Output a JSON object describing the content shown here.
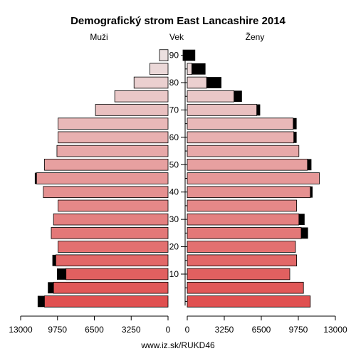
{
  "chart_data": {
    "type": "bar",
    "orientation": "horizontal-population-pyramid",
    "title": "Demografický strom East Lancashire 2014",
    "left_label": "Muži",
    "center_label": "Vek",
    "right_label": "Ženy",
    "footer": "www.iz.sk/RUKD46",
    "x_max": 13000,
    "x_ticks_left": [
      "13000",
      "9750",
      "6500",
      "3250",
      "0"
    ],
    "x_ticks_right": [
      "0",
      "3250",
      "6500",
      "9750",
      "13000"
    ],
    "age_ticks": [
      "10",
      "20",
      "30",
      "40",
      "50",
      "60",
      "70",
      "80",
      "90"
    ],
    "age_groups": [
      "0-4",
      "5-9",
      "10-14",
      "15-19",
      "20-24",
      "25-29",
      "30-34",
      "35-39",
      "40-44",
      "45-49",
      "50-54",
      "55-59",
      "60-64",
      "65-69",
      "70-74",
      "75-79",
      "80-84",
      "85-89",
      "90+"
    ],
    "male_values": [
      10900,
      10100,
      9000,
      9900,
      9700,
      10300,
      10100,
      9700,
      11000,
      11600,
      10900,
      9800,
      9700,
      9700,
      6400,
      4700,
      3000,
      1600,
      750
    ],
    "male_excess": [
      600,
      500,
      800,
      300,
      0,
      0,
      0,
      0,
      0,
      150,
      0,
      0,
      0,
      0,
      0,
      0,
      0,
      0,
      0
    ],
    "female_values": [
      10800,
      10200,
      9000,
      9600,
      9500,
      10600,
      10300,
      9600,
      11000,
      11600,
      10900,
      9800,
      9600,
      9600,
      6400,
      4800,
      3000,
      1600,
      700
    ],
    "female_excess": [
      0,
      0,
      0,
      0,
      0,
      0,
      0,
      0,
      0,
      0,
      0,
      0,
      0,
      0,
      0,
      0,
      0,
      0,
      0
    ],
    "female_excess_display": [
      0,
      0,
      0,
      0,
      0,
      600,
      500,
      0,
      200,
      0,
      350,
      0,
      250,
      300,
      300,
      700,
      1300,
      1200,
      1100
    ],
    "colors": {
      "bar_young": "#e05050",
      "bar_old": "#ece0e0",
      "excess": "#000000",
      "outline": "#000000"
    }
  }
}
